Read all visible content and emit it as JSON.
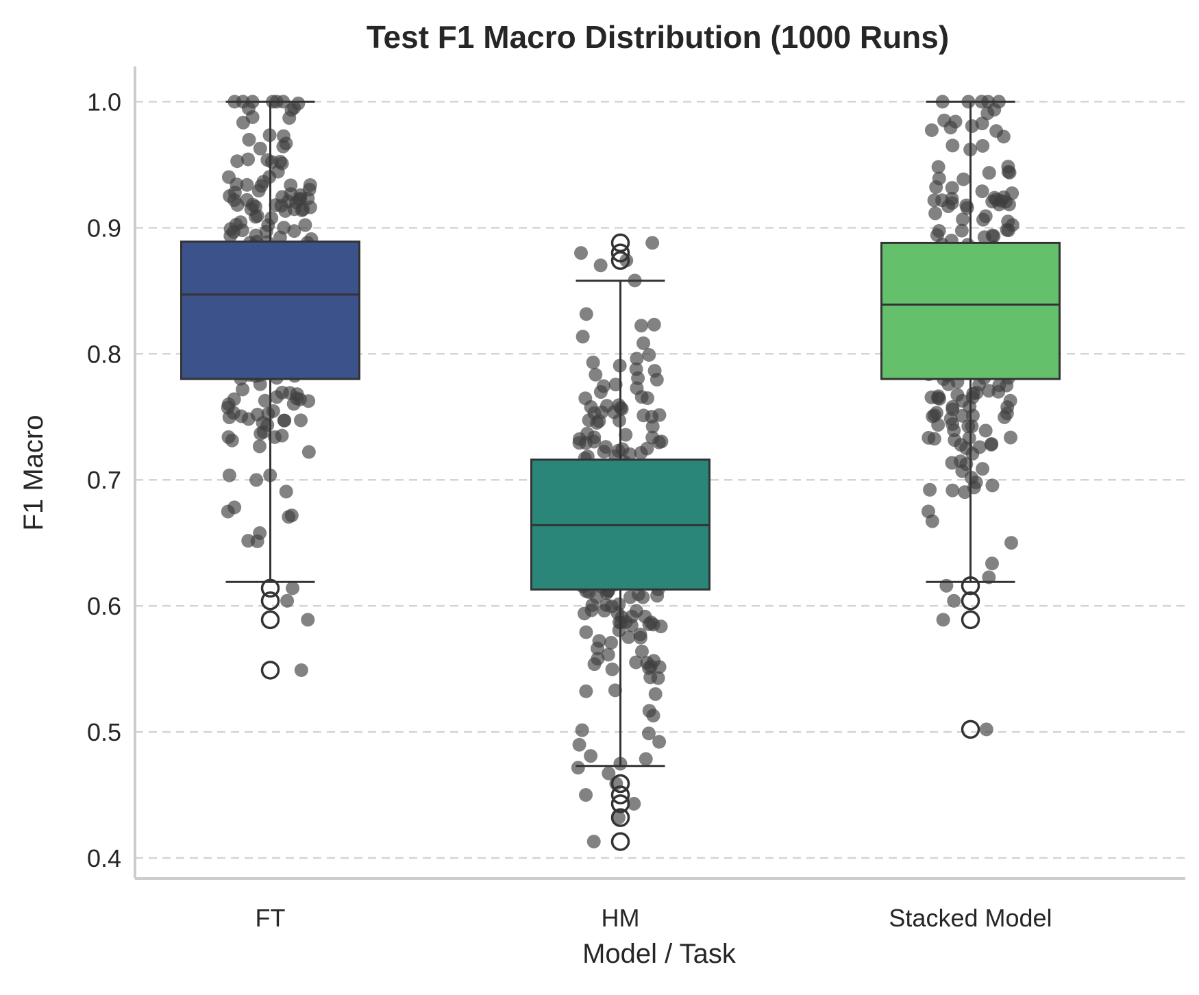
{
  "chart_data": {
    "type": "box",
    "title": "Test F1 Macro Distribution (1000 Runs)",
    "xlabel": "Model / Task",
    "ylabel": "F1 Macro",
    "ylim": [
      0.385,
      1.03
    ],
    "yticks": [
      {
        "value": 0.4,
        "label": "0.4"
      },
      {
        "value": 0.5,
        "label": "0.5"
      },
      {
        "value": 0.6,
        "label": "0.6"
      },
      {
        "value": 0.7,
        "label": "0.7"
      },
      {
        "value": 0.8,
        "label": "0.8"
      },
      {
        "value": 0.9,
        "label": "0.9"
      },
      {
        "value": 1.0,
        "label": "1.0"
      }
    ],
    "grid": "horizontal dashed",
    "overlay": "jittered strip of individual run scores",
    "series": [
      {
        "category": "FT",
        "color": "#3b528b",
        "whisker_low": 0.619,
        "q1": 0.78,
        "median": 0.847,
        "q3": 0.889,
        "whisker_high": 1.0,
        "outliers": [
          0.614,
          0.604,
          0.589,
          0.549
        ],
        "min": 0.549,
        "max": 1.0
      },
      {
        "category": "HM",
        "color": "#2a8679",
        "whisker_low": 0.473,
        "q1": 0.613,
        "median": 0.664,
        "q3": 0.716,
        "whisker_high": 0.858,
        "outliers": [
          0.888,
          0.88,
          0.874,
          0.459,
          0.45,
          0.443,
          0.432,
          0.413
        ],
        "min": 0.413,
        "max": 0.888
      },
      {
        "category": "Stacked Model",
        "color": "#65c06c",
        "whisker_low": 0.619,
        "q1": 0.78,
        "median": 0.839,
        "q3": 0.888,
        "whisker_high": 1.0,
        "outliers": [
          0.616,
          0.604,
          0.589,
          0.502
        ],
        "min": 0.502,
        "max": 1.0
      }
    ]
  }
}
